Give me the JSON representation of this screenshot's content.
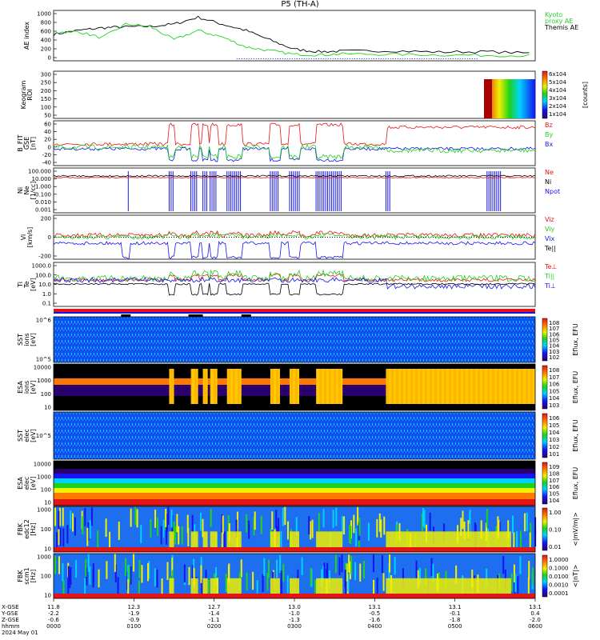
{
  "title": "P5  (TH-A)",
  "colors": {
    "red": "#e41414",
    "green": "#1ed21e",
    "blue": "#1414f0",
    "black": "#000000",
    "frame": "#000000"
  },
  "chart_data": [
    {
      "id": "ae",
      "type": "line",
      "ylabel": "AE index",
      "yticks": [
        "1000",
        "800",
        "600",
        "400",
        "200",
        "0"
      ],
      "ylim": [
        -100,
        1000
      ],
      "legend": [
        {
          "text": "Kyoto",
          "color": "green"
        },
        {
          "text": "proxy AE",
          "color": "green"
        },
        {
          "text": "Themis AE",
          "color": "black"
        }
      ],
      "series": [
        {
          "color": "black",
          "x": [
            0,
            0.05,
            0.1,
            0.15,
            0.2,
            0.25,
            0.3,
            0.35,
            0.4,
            0.45,
            0.5,
            0.55,
            0.6,
            0.7,
            0.8,
            0.9,
            1.0
          ],
          "values": [
            480,
            560,
            620,
            640,
            650,
            700,
            850,
            700,
            560,
            350,
            150,
            100,
            110,
            120,
            90,
            100,
            60
          ]
        },
        {
          "color": "green",
          "x": [
            0,
            0.05,
            0.1,
            0.15,
            0.2,
            0.25,
            0.3,
            0.35,
            0.4,
            0.45,
            0.5,
            0.55,
            0.6,
            0.7,
            0.8,
            0.9,
            1.0
          ],
          "values": [
            520,
            540,
            400,
            700,
            650,
            360,
            560,
            420,
            200,
            120,
            40,
            30,
            50,
            40,
            30,
            20,
            10
          ]
        }
      ]
    },
    {
      "id": "keogram",
      "type": "heatmap",
      "ylabel": "Keogram",
      "ylabel2": "ROI",
      "yticks": [
        "300",
        "250",
        "200",
        "150",
        "100",
        "50"
      ],
      "colorbar_ticks": [
        "6x10^4",
        "5x10^4",
        "4x10^4",
        "3x10^4",
        "2x10^4",
        "1x10^4"
      ],
      "colorbar_label": "[counts]"
    },
    {
      "id": "bfield",
      "type": "line",
      "ylabel": "B_FIT",
      "ylabel2": "GSE",
      "ylabel3": "[nT]",
      "yticks": [
        "60",
        "40",
        "20",
        "0",
        "-20",
        "-40"
      ],
      "ylim": [
        -50,
        65
      ],
      "legend": [
        {
          "text": "Bz",
          "color": "red"
        },
        {
          "text": "By",
          "color": "green"
        },
        {
          "text": "Bx",
          "color": "blue"
        }
      ]
    },
    {
      "id": "density",
      "type": "line",
      "ylabel": "Ni",
      "ylabel2": "Ne",
      "ylabel3": "[1/cc]",
      "yticks": [
        "100.000",
        "10.000",
        "1.000",
        "0.100",
        "0.010",
        "0.001"
      ],
      "legend": [
        {
          "text": "Ne",
          "color": "red"
        },
        {
          "text": "Ni",
          "color": "black"
        },
        {
          "text": "Npot",
          "color": "blue"
        }
      ]
    },
    {
      "id": "velocity",
      "type": "line",
      "ylabel": "Vi",
      "ylabel2": "[km/s]",
      "yticks": [
        "200",
        "0",
        "-200"
      ],
      "legend": [
        {
          "text": "Viz",
          "color": "red"
        },
        {
          "text": "Viy",
          "color": "green"
        },
        {
          "text": "Vix",
          "color": "blue"
        },
        {
          "text": "Te||",
          "color": "black"
        }
      ]
    },
    {
      "id": "temperature",
      "type": "line",
      "ylabel": "Ti",
      "ylabel2": "Te",
      "ylabel3": "[eV]",
      "yticks": [
        "1000.0",
        "100.0",
        "10.0",
        "1.0",
        "0.1"
      ],
      "legend": [
        {
          "text": "Te⊥",
          "color": "red"
        },
        {
          "text": "Ti||",
          "color": "green"
        },
        {
          "text": "Ti⊥",
          "color": "blue"
        }
      ]
    },
    {
      "id": "sst_ion",
      "type": "heatmap",
      "ylabel": "SST",
      "ylabel2": "ions",
      "ylabel3": "[eV]",
      "yticks": [
        "10^6",
        "10^5"
      ],
      "colorbar_label": "Eflux, EFU",
      "colorbar_ticks": [
        "10^8",
        "10^7",
        "10^6",
        "10^5",
        "10^4",
        "10^3",
        "10^2"
      ]
    },
    {
      "id": "esa_ion",
      "type": "heatmap",
      "ylabel": "ESA",
      "ylabel2": "ions",
      "ylabel3": "[eV]",
      "yticks": [
        "10000",
        "1000",
        "100",
        "10"
      ],
      "colorbar_label": "Eflux, EFU",
      "colorbar_ticks": [
        "10^8",
        "10^7",
        "10^6",
        "10^5",
        "10^4",
        "10^3"
      ]
    },
    {
      "id": "sst_elec",
      "type": "heatmap",
      "ylabel": "SST",
      "ylabel2": "elec",
      "ylabel3": "[eV]",
      "yticks": [
        "10^5"
      ],
      "colorbar_label": "Eflux, EFU",
      "colorbar_ticks": [
        "10^6",
        "10^5",
        "10^4",
        "10^3",
        "10^2",
        "10^1"
      ]
    },
    {
      "id": "esa_elec",
      "type": "heatmap",
      "ylabel": "ESA",
      "ylabel2": "elec",
      "ylabel3": "[eV]",
      "yticks": [
        "10000",
        "1000",
        "100",
        "10"
      ],
      "colorbar_label": "Eflux, EFU",
      "colorbar_ticks": [
        "10^9",
        "10^8",
        "10^7",
        "10^6",
        "10^5",
        "10^4"
      ]
    },
    {
      "id": "fbk_e",
      "type": "heatmap",
      "ylabel": "FBK",
      "ylabel2": "edc12",
      "ylabel3": "[Hz]",
      "yticks": [
        "1000",
        "100",
        "10"
      ],
      "colorbar_label": "<|mV/m|>",
      "colorbar_ticks": [
        "1.00",
        "0.10",
        "0.01"
      ]
    },
    {
      "id": "fbk_b",
      "type": "heatmap",
      "ylabel": "FBK",
      "ylabel2": "scm1",
      "ylabel3": "[Hz]",
      "yticks": [
        "1000",
        "100",
        "10"
      ],
      "colorbar_label": "<|nT|>",
      "colorbar_ticks": [
        "1.0000",
        "0.1000",
        "0.0100",
        "0.0010",
        "0.0001"
      ]
    }
  ],
  "xaxis": {
    "row_labels": [
      "X-GSE",
      "Y-GSE",
      "Z-GSE",
      "hhmm",
      "2024 May 01"
    ],
    "columns": [
      {
        "x": "11.8",
        "y": "-2.2",
        "z": "-0.6",
        "t": "0000"
      },
      {
        "x": "12.3",
        "y": "-1.9",
        "z": "-0.9",
        "t": "0100"
      },
      {
        "x": "12.7",
        "y": "-1.4",
        "z": "-1.1",
        "t": "0200"
      },
      {
        "x": "13.0",
        "y": "-1.0",
        "z": "-1.3",
        "t": "0300"
      },
      {
        "x": "13.1",
        "y": "-0.5",
        "z": "-1.6",
        "t": "0400"
      },
      {
        "x": "13.1",
        "y": "-0.1",
        "z": "-1.8",
        "t": "0500"
      },
      {
        "x": "13.1",
        "y": "0.4",
        "z": "-2.0",
        "t": "0600"
      }
    ]
  }
}
